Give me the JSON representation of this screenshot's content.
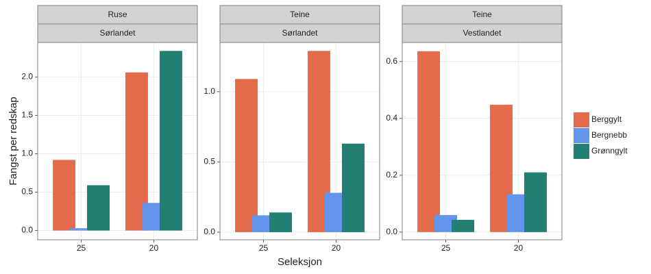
{
  "chart_data": [
    {
      "type": "bar",
      "strips": [
        "Ruse",
        "Sørlandet"
      ],
      "ylabel": "Fangst per redskap",
      "categories": [
        "25",
        "20"
      ],
      "series": [
        {
          "name": "Berggylt",
          "color": "#e56b4d",
          "values": [
            0.92,
            2.06
          ]
        },
        {
          "name": "Bergnebb",
          "color": "#6495ed",
          "values": [
            0.03,
            0.36
          ]
        },
        {
          "name": "Grønngylt",
          "color": "#218072",
          "values": [
            0.59,
            2.34
          ]
        }
      ],
      "ylim": [
        -0.12,
        2.45
      ],
      "yticks": [
        {
          "value": 0,
          "label": "0.0"
        },
        0.5,
        {
          "value": 1,
          "label": "1.0"
        },
        1.5,
        {
          "value": 2,
          "label": "2.0"
        }
      ],
      "grid": true
    },
    {
      "type": "bar",
      "strips": [
        "Teine",
        "Sørlandet"
      ],
      "xlabel": "Seleksjon",
      "categories": [
        "25",
        "20"
      ],
      "series": [
        {
          "name": "Berggylt",
          "color": "#e56b4d",
          "values": [
            1.09,
            1.29
          ]
        },
        {
          "name": "Bergnebb",
          "color": "#6495ed",
          "values": [
            0.12,
            0.28
          ]
        },
        {
          "name": "Grønngylt",
          "color": "#218072",
          "values": [
            0.14,
            0.63
          ]
        }
      ],
      "ylim": [
        -0.054,
        1.35
      ],
      "yticks": [
        {
          "value": 0,
          "label": "0.0"
        },
        0.5,
        {
          "value": 1,
          "label": "1.0"
        }
      ],
      "grid": true
    },
    {
      "type": "bar",
      "strips": [
        "Teine",
        "Vestlandet"
      ],
      "categories": [
        "25",
        "20"
      ],
      "series": [
        {
          "name": "Berggylt",
          "color": "#e56b4d",
          "values": [
            0.636,
            0.448
          ]
        },
        {
          "name": "Bergnebb",
          "color": "#6495ed",
          "values": [
            0.06,
            0.133
          ]
        },
        {
          "name": "Grønngylt",
          "color": "#218072",
          "values": [
            0.043,
            0.21
          ]
        }
      ],
      "ylim": [
        -0.027,
        0.667
      ],
      "yticks": [
        {
          "value": 0,
          "label": "0.0"
        },
        0.2,
        0.4,
        0.6
      ],
      "grid": true
    }
  ]
}
